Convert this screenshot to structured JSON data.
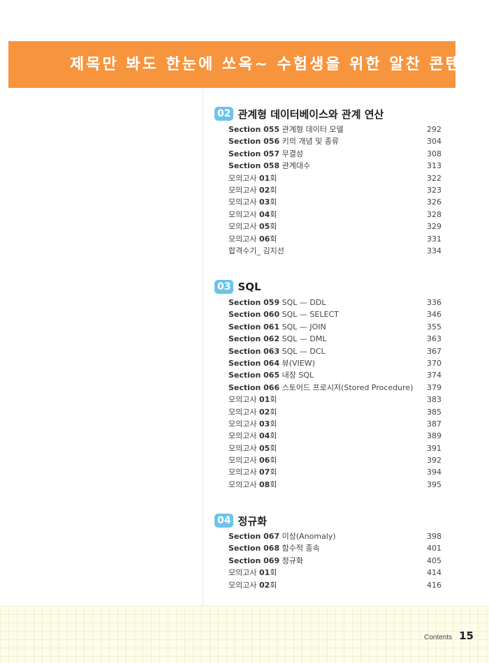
{
  "banner": "제목만 봐도 한눈에 쏘옥~ 수험생을 위한 알찬 콘텐츠!",
  "chapters": [
    {
      "num": "02",
      "title": "관계형 데이터베이스와 관계 연산",
      "items": [
        {
          "pre": "",
          "bold": "Section 055",
          "text": " 관계형 데이터 모델",
          "page": "292"
        },
        {
          "pre": "",
          "bold": "Section 056",
          "text": " 키의 개념 및 종류",
          "page": "304"
        },
        {
          "pre": "",
          "bold": "Section 057",
          "text": " 무결성",
          "page": "308"
        },
        {
          "pre": "",
          "bold": "Section 058",
          "text": " 관계대수",
          "page": "313"
        },
        {
          "pre": "모의고사 ",
          "bold": "01",
          "text": "회",
          "page": "322"
        },
        {
          "pre": "모의고사 ",
          "bold": "02",
          "text": "회",
          "page": "323"
        },
        {
          "pre": "모의고사 ",
          "bold": "03",
          "text": "회",
          "page": "326"
        },
        {
          "pre": "모의고사 ",
          "bold": "04",
          "text": "회",
          "page": "328"
        },
        {
          "pre": "모의고사 ",
          "bold": "05",
          "text": "회",
          "page": "329"
        },
        {
          "pre": "모의고사 ",
          "bold": "06",
          "text": "회",
          "page": "331"
        },
        {
          "pre": "합격수기_ 김지선",
          "bold": "",
          "text": "",
          "page": "334"
        }
      ]
    },
    {
      "num": "03",
      "title": "SQL",
      "items": [
        {
          "pre": "",
          "bold": "Section 059",
          "text": " SQL — DDL",
          "page": "336"
        },
        {
          "pre": "",
          "bold": "Section 060",
          "text": " SQL — SELECT",
          "page": "346"
        },
        {
          "pre": "",
          "bold": "Section 061",
          "text": " SQL — JOIN",
          "page": "355"
        },
        {
          "pre": "",
          "bold": "Section 062",
          "text": " SQL — DML",
          "page": "363"
        },
        {
          "pre": "",
          "bold": "Section 063",
          "text": " SQL — DCL",
          "page": "367"
        },
        {
          "pre": "",
          "bold": "Section 064",
          "text": " 뷰(VIEW)",
          "page": "370"
        },
        {
          "pre": "",
          "bold": "Section 065",
          "text": " 내장 SQL",
          "page": "374"
        },
        {
          "pre": "",
          "bold": "Section 066",
          "text": " 스토어드 프로시저(Stored Procedure)",
          "page": "379"
        },
        {
          "pre": "모의고사 ",
          "bold": "01",
          "text": "회",
          "page": "383"
        },
        {
          "pre": "모의고사 ",
          "bold": "02",
          "text": "회",
          "page": "385"
        },
        {
          "pre": "모의고사 ",
          "bold": "03",
          "text": "회",
          "page": "387"
        },
        {
          "pre": "모의고사 ",
          "bold": "04",
          "text": "회",
          "page": "389"
        },
        {
          "pre": "모의고사 ",
          "bold": "05",
          "text": "회",
          "page": "391"
        },
        {
          "pre": "모의고사 ",
          "bold": "06",
          "text": "회",
          "page": "392"
        },
        {
          "pre": "모의고사 ",
          "bold": "07",
          "text": "회",
          "page": "394"
        },
        {
          "pre": "모의고사 ",
          "bold": "08",
          "text": "회",
          "page": "395"
        }
      ]
    },
    {
      "num": "04",
      "title": "정규화",
      "items": [
        {
          "pre": "",
          "bold": "Section 067",
          "text": " 이상(Anomaly)",
          "page": "398"
        },
        {
          "pre": "",
          "bold": "Section 068",
          "text": " 함수적 종속",
          "page": "401"
        },
        {
          "pre": "",
          "bold": "Section 069",
          "text": " 정규화",
          "page": "405"
        },
        {
          "pre": "모의고사 ",
          "bold": "01",
          "text": "회",
          "page": "414"
        },
        {
          "pre": "모의고사 ",
          "bold": "02",
          "text": "회",
          "page": "416"
        }
      ]
    }
  ],
  "footer": {
    "label": "Contents",
    "page": "15"
  }
}
